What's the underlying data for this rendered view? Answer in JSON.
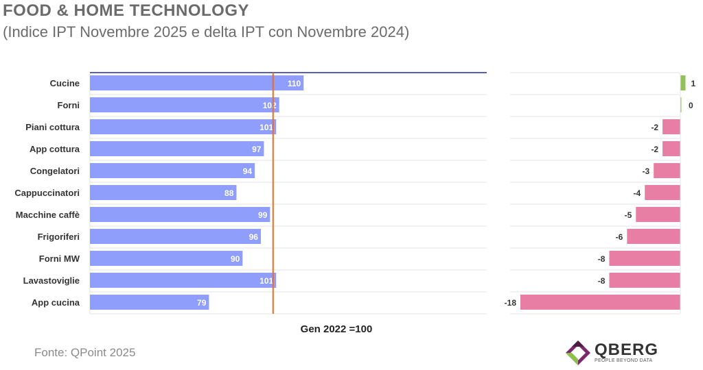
{
  "header": {
    "title": "FOOD & HOME TECHNOLOGY",
    "subtitle": "(Indice IPT Novembre 2025 e delta IPT con Novembre 2024)"
  },
  "footer": {
    "source": "Fonte: QPoint 2025",
    "baseline_label": "Gen 2022 =100"
  },
  "logo": {
    "name": "QBERG",
    "tagline": "PEOPLE BEYOND DATA"
  },
  "colors": {
    "index_bar": "#8f9dfb",
    "reference_line": "#ef6b1f",
    "positive_delta": "#92c15a",
    "negative_delta": "#e67fa3",
    "top_line": "#1d2f8a"
  },
  "chart_data": [
    {
      "type": "bar",
      "orientation": "horizontal",
      "categories": [
        "Cucine",
        "Forni",
        "Piani cottura",
        "App cottura",
        "Congelatori",
        "Cappuccinatori",
        "Macchine caffè",
        "Frigoriferi",
        "Forni MW",
        "Lavastoviglie",
        "App cucina"
      ],
      "values": [
        110,
        102,
        101,
        97,
        94,
        88,
        99,
        96,
        90,
        101,
        79
      ],
      "reference_value": 100,
      "xlim": [
        40,
        170
      ],
      "grid": true
    },
    {
      "type": "bar",
      "orientation": "horizontal",
      "categories": [
        "Cucine",
        "Forni",
        "Piani cottura",
        "App cottura",
        "Congelatori",
        "Cappuccinatori",
        "Macchine caffè",
        "Frigoriferi",
        "Forni MW",
        "Lavastoviglie",
        "App cucina"
      ],
      "values": [
        1,
        0,
        -2,
        -2,
        -3,
        -4,
        -5,
        -6,
        -8,
        -8,
        -18
      ],
      "xlim": [
        -18,
        1
      ],
      "grid": true
    }
  ]
}
